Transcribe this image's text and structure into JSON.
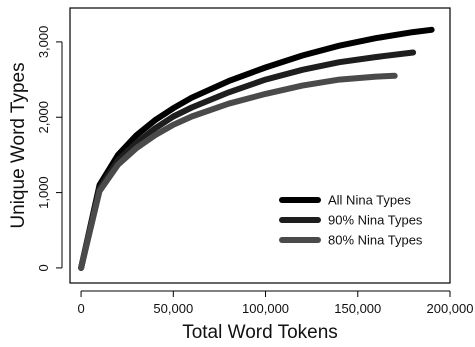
{
  "chart_data": {
    "type": "line",
    "xlabel": "Total Word Tokens",
    "ylabel": "Unique Word Types",
    "xlim": [
      -6000,
      200000
    ],
    "ylim": [
      -200,
      3450
    ],
    "x_ticks": [
      0,
      50000,
      100000,
      150000,
      200000
    ],
    "x_tick_labels": [
      "0",
      "50,000",
      "100,000",
      "150,000",
      "200,000"
    ],
    "y_ticks": [
      0,
      1000,
      2000,
      3000
    ],
    "y_tick_labels": [
      "0",
      "1,000",
      "2,000",
      "3,000"
    ],
    "grid": false,
    "legend_position": "bottom-right",
    "series": [
      {
        "name": "All Nina Types",
        "color": "#000000",
        "x": [
          0,
          10000,
          20000,
          30000,
          40000,
          50000,
          60000,
          80000,
          100000,
          120000,
          140000,
          160000,
          180000,
          190000
        ],
        "y": [
          0,
          1100,
          1500,
          1760,
          1960,
          2120,
          2260,
          2480,
          2660,
          2820,
          2950,
          3050,
          3130,
          3160
        ]
      },
      {
        "name": "90% Nina Types",
        "color": "#1e1e1e",
        "x": [
          0,
          10000,
          20000,
          30000,
          40000,
          50000,
          60000,
          80000,
          100000,
          120000,
          140000,
          160000,
          180000
        ],
        "y": [
          0,
          1060,
          1430,
          1660,
          1850,
          2010,
          2130,
          2330,
          2500,
          2630,
          2730,
          2800,
          2860
        ]
      },
      {
        "name": "80% Nina Types",
        "color": "#4a4a4a",
        "x": [
          0,
          10000,
          20000,
          30000,
          40000,
          50000,
          60000,
          80000,
          100000,
          120000,
          140000,
          160000,
          170000
        ],
        "y": [
          0,
          1020,
          1370,
          1590,
          1760,
          1900,
          2010,
          2180,
          2310,
          2420,
          2500,
          2540,
          2550
        ]
      }
    ]
  }
}
